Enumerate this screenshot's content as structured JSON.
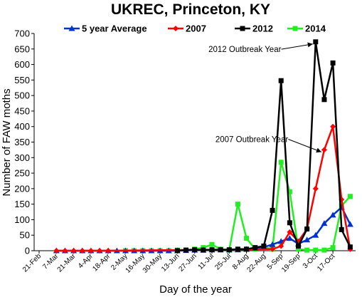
{
  "chart_data": {
    "type": "line",
    "title": "UKREC, Princeton, KY",
    "xlabel": "Day of the year",
    "ylabel": "Number of FAW moths",
    "ylim": [
      0,
      700
    ],
    "y_ticks": [
      0,
      50,
      100,
      150,
      200,
      250,
      300,
      350,
      400,
      450,
      500,
      550,
      600,
      650,
      700
    ],
    "x_tick_labels": [
      "21-Feb",
      "7-Mar",
      "21-Mar",
      "4-Apr",
      "18-Apr",
      "2-May",
      "16-May",
      "30-May",
      "13-Jun",
      "27-Jun",
      "11-Jul",
      "25-Jul",
      "8-Aug",
      "22-Aug",
      "5-Sep",
      "19-Sep",
      "3-Oct",
      "17-Oct"
    ],
    "x_unit": "weeks from 21-Feb",
    "grid": false,
    "legend_position": "top",
    "series": [
      {
        "name": "5 year Average",
        "color": "#0033cc",
        "marker": "triangle",
        "points": [
          [
            1,
            0
          ],
          [
            1.5,
            0
          ],
          [
            2,
            0
          ],
          [
            2.5,
            0
          ],
          [
            3,
            0
          ],
          [
            3.5,
            0
          ],
          [
            4,
            0
          ],
          [
            4.5,
            0
          ],
          [
            5,
            0
          ],
          [
            5.5,
            0
          ],
          [
            6,
            0
          ],
          [
            6.5,
            0
          ],
          [
            7,
            0
          ],
          [
            7.5,
            0
          ],
          [
            8,
            0
          ],
          [
            8.5,
            1
          ],
          [
            9,
            2
          ],
          [
            9.5,
            2
          ],
          [
            10,
            3
          ],
          [
            10.5,
            3
          ],
          [
            11,
            3
          ],
          [
            11.5,
            3
          ],
          [
            12,
            5
          ],
          [
            12.5,
            8
          ],
          [
            13,
            12
          ],
          [
            13.5,
            20
          ],
          [
            14,
            30
          ],
          [
            14.5,
            40
          ],
          [
            15,
            22
          ],
          [
            15.5,
            35
          ],
          [
            16,
            50
          ],
          [
            16.5,
            88
          ],
          [
            17,
            115
          ],
          [
            17.5,
            140
          ],
          [
            18,
            85
          ]
        ]
      },
      {
        "name": "2007",
        "color": "#ff0000",
        "marker": "diamond",
        "points": [
          [
            1,
            0
          ],
          [
            1.5,
            0
          ],
          [
            2,
            0
          ],
          [
            2.5,
            0
          ],
          [
            3,
            0
          ],
          [
            3.5,
            0
          ],
          [
            4,
            0
          ],
          [
            13.5,
            5
          ],
          [
            14,
            15
          ],
          [
            14.5,
            60
          ],
          [
            15,
            30
          ],
          [
            15.5,
            70
          ],
          [
            16,
            200
          ],
          [
            16.5,
            325
          ],
          [
            17,
            400
          ],
          [
            17.5,
            165
          ],
          [
            18,
            5
          ]
        ]
      },
      {
        "name": "2012",
        "color": "#000000",
        "marker": "square",
        "points": [
          [
            8,
            0
          ],
          [
            8.5,
            2
          ],
          [
            9,
            3
          ],
          [
            9.5,
            2
          ],
          [
            10,
            3
          ],
          [
            10.5,
            3
          ],
          [
            11,
            3
          ],
          [
            11.5,
            5
          ],
          [
            12,
            5
          ],
          [
            12.5,
            10
          ],
          [
            13,
            15
          ],
          [
            13.5,
            130
          ],
          [
            14,
            548
          ],
          [
            14.5,
            90
          ],
          [
            15,
            15
          ],
          [
            15.5,
            70
          ],
          [
            16,
            673
          ],
          [
            16.5,
            487
          ],
          [
            17,
            605
          ],
          [
            17.5,
            68
          ],
          [
            18,
            12
          ]
        ]
      },
      {
        "name": "2014",
        "color": "#22ee22",
        "marker": "square",
        "points": [
          [
            5,
            0
          ],
          [
            5.5,
            0
          ],
          [
            6,
            0
          ],
          [
            6.5,
            0
          ],
          [
            7,
            0
          ],
          [
            7.5,
            0
          ],
          [
            8,
            2
          ],
          [
            8.5,
            2
          ],
          [
            9,
            5
          ],
          [
            9.5,
            10
          ],
          [
            10,
            20
          ],
          [
            10.5,
            5
          ],
          [
            11,
            2
          ],
          [
            11.5,
            150
          ],
          [
            12,
            40
          ],
          [
            12.5,
            5
          ],
          [
            13,
            12
          ],
          [
            13.5,
            5
          ],
          [
            14,
            285
          ],
          [
            14.5,
            190
          ],
          [
            15,
            5
          ],
          [
            15.5,
            2
          ],
          [
            16,
            2
          ],
          [
            16.5,
            2
          ],
          [
            17,
            10
          ],
          [
            17.5,
            145
          ],
          [
            18,
            175
          ]
        ]
      }
    ],
    "annotations": [
      {
        "text": "2012 Outbreak Year",
        "x": 9.8,
        "y": 640,
        "target": [
          16,
          673
        ]
      },
      {
        "text": "2007 Outbreak Year",
        "x": 10.2,
        "y": 350,
        "target": [
          16.5,
          325
        ]
      }
    ]
  }
}
